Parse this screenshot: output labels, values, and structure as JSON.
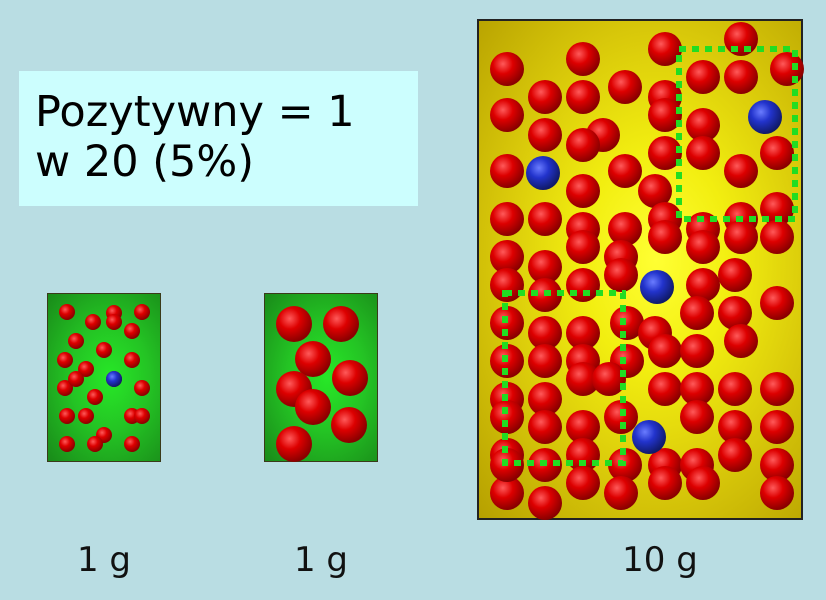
{
  "callout": {
    "line1": "Pozytywny = 1",
    "line2": "w 20 (5%)"
  },
  "samples": [
    {
      "id": "small",
      "weight_label": "1 g",
      "background": "green"
    },
    {
      "id": "medium",
      "weight_label": "1 g",
      "background": "green"
    },
    {
      "id": "large",
      "weight_label": "10 g",
      "background": "yellow"
    }
  ],
  "colors": {
    "negative_particle": "#dd0000",
    "positive_particle": "#2233cc",
    "selection_box": "#22dd22",
    "callout_bg": "#ccfefe",
    "page_bg": "#b9dde3"
  }
}
